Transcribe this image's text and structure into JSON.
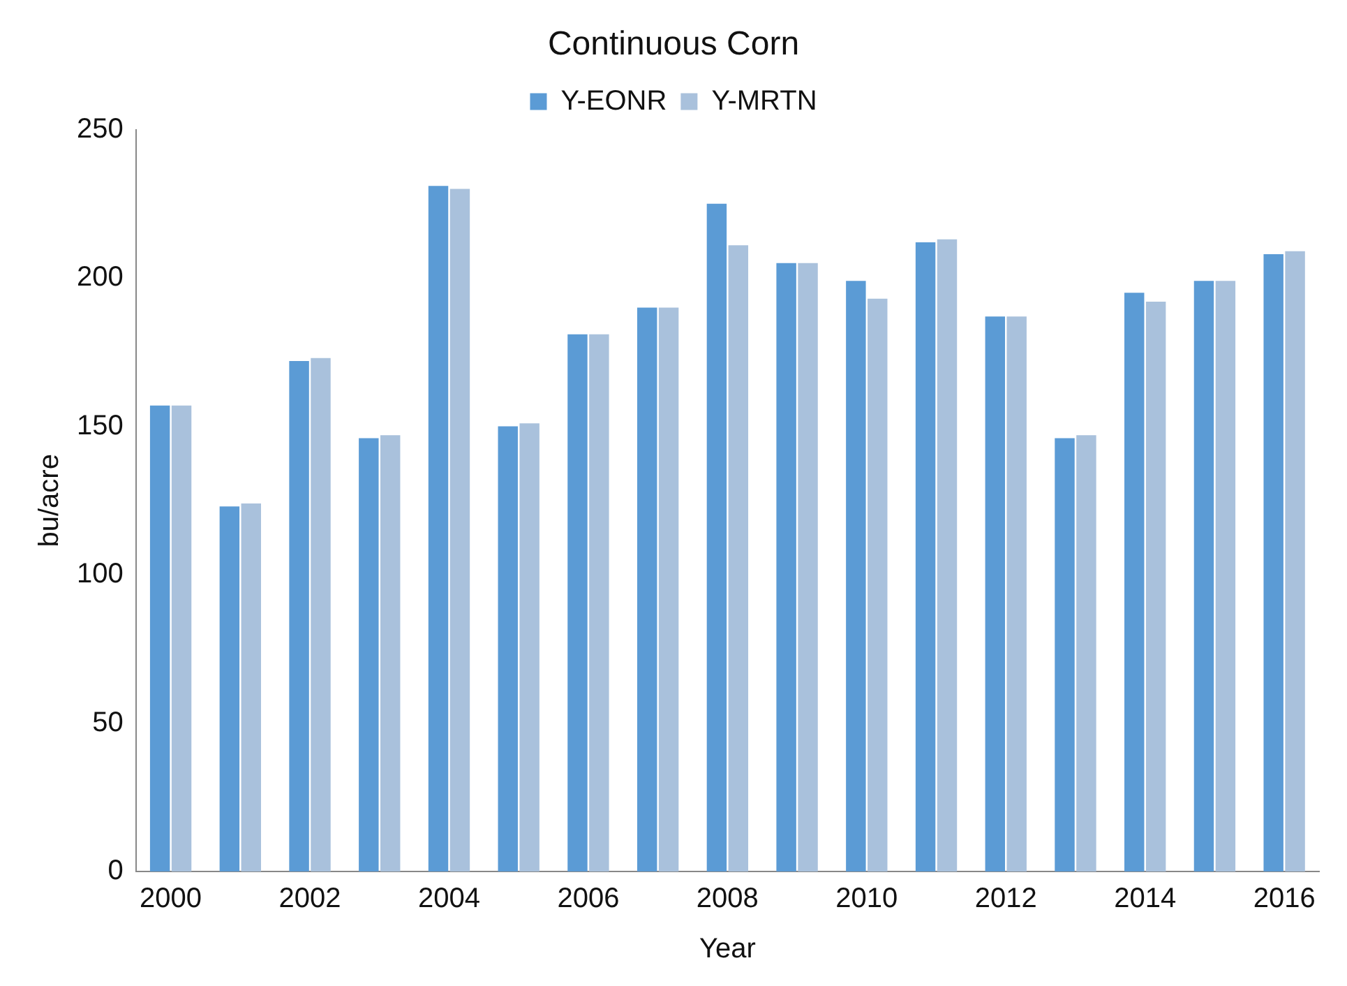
{
  "chart_data": {
    "type": "bar",
    "title": "Continuous Corn",
    "xlabel": "Year",
    "ylabel": "bu/acre",
    "categories": [
      "2000",
      null,
      "2002",
      null,
      "2004",
      null,
      "2006",
      null,
      "2008",
      null,
      "2010",
      null,
      "2012",
      null,
      "2014",
      null,
      "2016"
    ],
    "series": [
      {
        "name": "Y-EONR",
        "color": "#5b9bd5",
        "values": [
          157,
          123,
          172,
          146,
          231,
          150,
          181,
          190,
          225,
          205,
          199,
          212,
          187,
          146,
          195,
          199,
          208
        ]
      },
      {
        "name": "Y-MRTN",
        "color": "#a9c1dc",
        "values": [
          157,
          124,
          173,
          147,
          230,
          151,
          181,
          190,
          211,
          205,
          193,
          213,
          187,
          147,
          192,
          199,
          209
        ]
      }
    ],
    "ylim": [
      0,
      250
    ],
    "yticks": [
      0,
      50,
      100,
      150,
      200,
      250
    ],
    "grid": false,
    "legend": "top"
  }
}
